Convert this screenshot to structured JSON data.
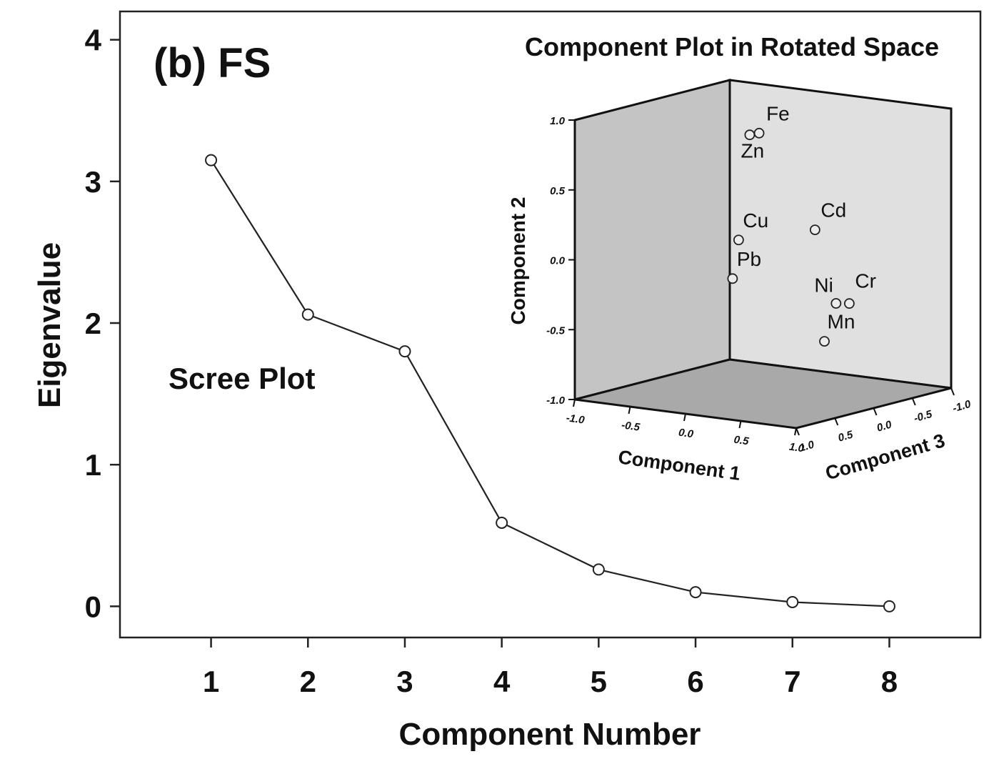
{
  "chart_data": [
    {
      "type": "line",
      "panel_label": "(b) FS",
      "annotation": "Scree Plot",
      "xlabel": "Component Number",
      "ylabel": "Eigenvalue",
      "x": [
        1,
        2,
        3,
        4,
        5,
        6,
        7,
        8
      ],
      "x_tick_labels": [
        "1",
        "2",
        "3",
        "4",
        "5",
        "6",
        "7",
        "8"
      ],
      "y_tick_labels": [
        "0",
        "1",
        "2",
        "3",
        "4"
      ],
      "y_ticks": [
        0,
        1,
        2,
        3,
        4
      ],
      "values": [
        3.15,
        2.06,
        1.8,
        0.59,
        0.26,
        0.1,
        0.03,
        0.0
      ],
      "ylim": [
        -0.22,
        4.2
      ],
      "xlim": [
        0.06,
        8.94
      ],
      "grid": false
    },
    {
      "type": "scatter",
      "title": "Component Plot in Rotated Space",
      "xlabel": "Component 1",
      "ylabel": "Component 2",
      "zlabel": "Component 3",
      "x_tick_labels": [
        "-1.0",
        "-0.5",
        "0.0",
        "0.5",
        "1.0"
      ],
      "y_tick_labels": [
        "1.0",
        "0.5",
        "0.0",
        "-0.5",
        "-1.0"
      ],
      "z_tick_labels": [
        "1.0",
        "0.5",
        "0.0",
        "-0.5",
        "-1.0"
      ],
      "points": [
        {
          "label": "Fe",
          "c1": 0.35,
          "c2": 0.98,
          "c3": 0.55
        },
        {
          "label": "Zn",
          "c1": 0.3,
          "c2": 0.97,
          "c3": 0.6
        },
        {
          "label": "Cd",
          "c1": 0.4,
          "c2": 0.2,
          "c3": -0.1
        },
        {
          "label": "Cu",
          "c1": -0.15,
          "c2": 0.1,
          "c3": 0.1
        },
        {
          "label": "Pb",
          "c1": -0.1,
          "c2": -0.15,
          "c3": 0.25
        },
        {
          "label": "Ni",
          "c1": 0.45,
          "c2": -0.35,
          "c3": -0.3
        },
        {
          "label": "Cr",
          "c1": 0.5,
          "c2": -0.36,
          "c3": -0.4
        },
        {
          "label": "Mn",
          "c1": 0.45,
          "c2": -0.6,
          "c3": -0.15
        }
      ]
    }
  ]
}
